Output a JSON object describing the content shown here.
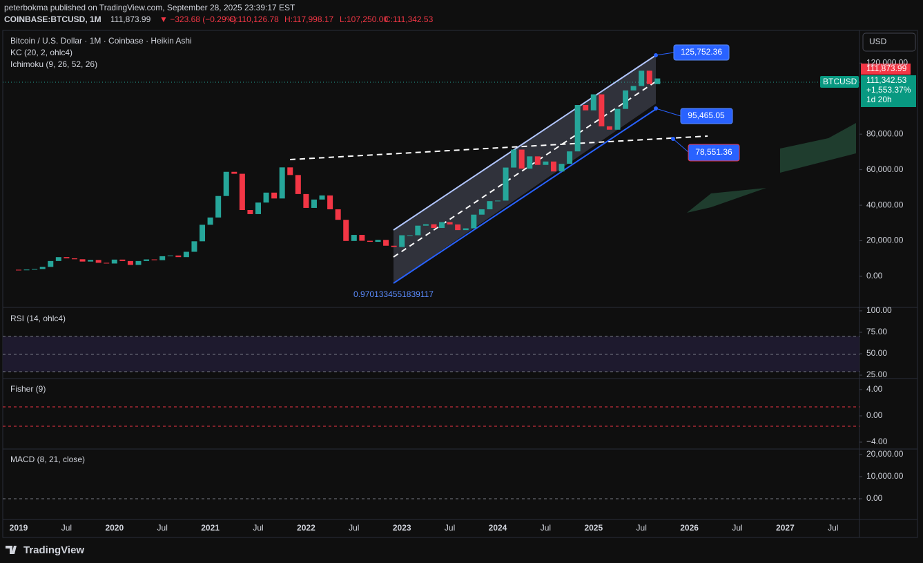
{
  "header": {
    "line1": "peterbokma published on TradingView.com, September 28, 2025 23:39:17 EST",
    "symbol": "COINBASE:BTCUSD, 1M",
    "last": "111,873.99",
    "change": "▼ −323.68 (−0.29%)",
    "o": "O:110,126.78",
    "h": "H:117,998.17",
    "l": "L:107,250.00",
    "c": "C:111,342.53"
  },
  "footer": "TradingView",
  "currency": "USD",
  "price_tags": {
    "last": "111,873.99",
    "symbol": "BTCUSD",
    "close": "111,342.53",
    "pct": "+1,553.37%",
    "countdown": "1d 20h"
  },
  "chart_data": [
    {
      "type": "candlestick",
      "title": "Bitcoin / U.S. Dollar · 1M · Coinbase · Heikin Ashi",
      "legend": [
        "KC (20, 2, ohlc4)",
        "Ichimoku (9, 26, 52, 26)"
      ],
      "annotations": [
        "125,752.36",
        "95,465.05",
        "78,551.36",
        "0.9701334551839117"
      ],
      "up_color": "#26a69a",
      "down_color": "#f23645",
      "x": [
        "2019-01",
        "2019-02",
        "2019-03",
        "2019-04",
        "2019-05",
        "2019-06",
        "2019-07",
        "2019-08",
        "2019-09",
        "2019-10",
        "2019-11",
        "2019-12",
        "2020-01",
        "2020-02",
        "2020-03",
        "2020-04",
        "2020-05",
        "2020-06",
        "2020-07",
        "2020-08",
        "2020-09",
        "2020-10",
        "2020-11",
        "2020-12",
        "2021-01",
        "2021-02",
        "2021-03",
        "2021-04",
        "2021-05",
        "2021-06",
        "2021-07",
        "2021-08",
        "2021-09",
        "2021-10",
        "2021-11",
        "2021-12",
        "2022-01",
        "2022-02",
        "2022-03",
        "2022-04",
        "2022-05",
        "2022-06",
        "2022-07",
        "2022-08",
        "2022-09",
        "2022-10",
        "2022-11",
        "2022-12",
        "2023-01",
        "2023-02",
        "2023-03",
        "2023-04",
        "2023-05",
        "2023-06",
        "2023-07",
        "2023-08",
        "2023-09",
        "2023-10",
        "2023-11",
        "2023-12",
        "2024-01",
        "2024-02",
        "2024-03",
        "2024-04",
        "2024-05",
        "2024-06",
        "2024-07",
        "2024-08",
        "2024-09",
        "2024-10",
        "2024-11",
        "2024-12",
        "2025-01",
        "2025-02",
        "2025-03",
        "2025-04",
        "2025-05",
        "2025-06",
        "2025-07",
        "2025-08",
        "2025-09"
      ],
      "open": [
        3700,
        3400,
        3800,
        4100,
        5300,
        8600,
        10800,
        10100,
        9600,
        8300,
        9200,
        7600,
        7200,
        9400,
        8600,
        6400,
        8600,
        9500,
        9100,
        11300,
        11700,
        10800,
        13800,
        19700,
        29000,
        33100,
        45200,
        58800,
        57700,
        37300,
        35000,
        41500,
        47100,
        43800,
        61300,
        57000,
        46300,
        38500,
        43200,
        45500,
        37700,
        31800,
        19900,
        23300,
        20000,
        19400,
        20500,
        17200,
        16500,
        23100,
        23100,
        28500,
        29300,
        27200,
        30500,
        29200,
        26000,
        27000,
        34700,
        37700,
        42300,
        42600,
        61200,
        71300,
        60600,
        67500,
        62700,
        64600,
        59000,
        63300,
        70300,
        96400,
        93400,
        102400,
        84400,
        82500,
        94200,
        104600,
        107100,
        115700,
        108200
      ],
      "close": [
        3400,
        3800,
        4100,
        5300,
        8600,
        10800,
        10100,
        9600,
        8300,
        9200,
        7600,
        7200,
        9400,
        8600,
        6400,
        8600,
        9500,
        9100,
        11300,
        11700,
        10800,
        13800,
        19700,
        29000,
        33100,
        45200,
        58800,
        57700,
        37300,
        35000,
        41500,
        47100,
        43800,
        61300,
        57000,
        46300,
        38500,
        43200,
        45500,
        37700,
        31800,
        19900,
        23300,
        20000,
        19400,
        20500,
        17200,
        16500,
        23100,
        23100,
        28500,
        29300,
        27200,
        30500,
        29200,
        26000,
        27000,
        34700,
        37700,
        42300,
        42600,
        61200,
        71300,
        60600,
        67500,
        62700,
        64600,
        59000,
        63300,
        70300,
        96400,
        93400,
        102400,
        84400,
        82500,
        94200,
        104600,
        107100,
        115700,
        108200,
        111342.53
      ],
      "xticks": [
        {
          "value": "2019-01",
          "label": "2019"
        },
        {
          "value": "2019-07",
          "label": "Jul"
        },
        {
          "value": "2020-01",
          "label": "2020"
        },
        {
          "value": "2020-07",
          "label": "Jul"
        },
        {
          "value": "2021-01",
          "label": "2021"
        },
        {
          "value": "2021-07",
          "label": "Jul"
        },
        {
          "value": "2022-01",
          "label": "2022"
        },
        {
          "value": "2022-07",
          "label": "Jul"
        },
        {
          "value": "2023-01",
          "label": "2023"
        },
        {
          "value": "2023-07",
          "label": "Jul"
        },
        {
          "value": "2024-01",
          "label": "2024"
        },
        {
          "value": "2024-07",
          "label": "Jul"
        },
        {
          "value": "2025-01",
          "label": "2025"
        },
        {
          "value": "2025-07",
          "label": "Jul"
        },
        {
          "value": "2026-01",
          "label": "2026"
        },
        {
          "value": "2026-07",
          "label": "Jul"
        },
        {
          "value": "2027-01",
          "label": "2027"
        },
        {
          "value": "2027-07",
          "label": "Jul"
        }
      ],
      "ylim": [
        -17500,
        138000
      ],
      "yticks": [
        {
          "value": 0,
          "label": "0.00"
        },
        {
          "value": 20000,
          "label": "20,000.00"
        },
        {
          "value": 40000,
          "label": "40,000.00"
        },
        {
          "value": 60000,
          "label": "60,000.00"
        },
        {
          "value": 80000,
          "label": "80,000.00"
        },
        {
          "value": 120000,
          "label": "120,000.00"
        }
      ],
      "grid": false
    },
    {
      "type": "line",
      "title": "RSI (14, ohlc4)",
      "ylim": [
        19.4,
        102.4
      ],
      "yticks": [
        {
          "value": 100,
          "label": "100.00"
        },
        {
          "value": 75,
          "label": "75.00"
        },
        {
          "value": 50,
          "label": "50.00"
        },
        {
          "value": 25,
          "label": "25.00"
        }
      ]
    },
    {
      "type": "line",
      "title": "Fisher (9)",
      "ylim": [
        -4.84,
        5.26
      ],
      "yticks": [
        {
          "value": 4,
          "label": "4.00"
        },
        {
          "value": 0,
          "label": "0.00"
        },
        {
          "value": -4,
          "label": "−4.00"
        }
      ]
    },
    {
      "type": "line",
      "title": "MACD (8, 21, close)",
      "ylim": [
        -7190,
        21875
      ],
      "yticks": [
        {
          "value": 20000,
          "label": "20,000.00"
        },
        {
          "value": 10000,
          "label": "10,000.00"
        },
        {
          "value": 0,
          "label": "0.00"
        }
      ]
    }
  ]
}
